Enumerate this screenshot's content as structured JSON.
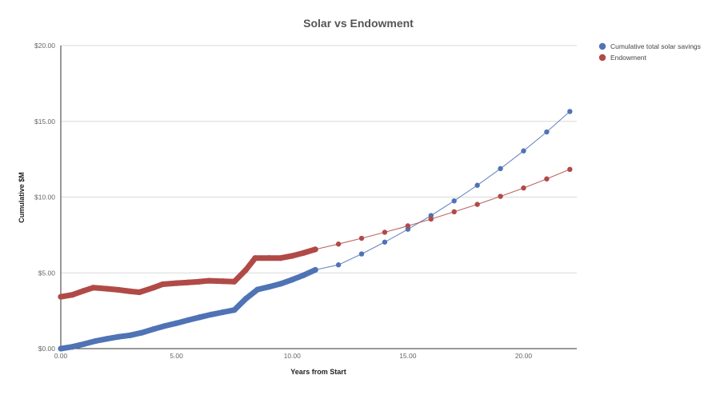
{
  "chart_data": {
    "type": "line",
    "title": "Solar vs Endowment",
    "xlabel": "Years from Start",
    "ylabel": "Cumulative $M",
    "xlim": [
      0,
      22.3
    ],
    "ylim": [
      0,
      20
    ],
    "x_ticks": [
      {
        "value": 0,
        "label": "0.00"
      },
      {
        "value": 5,
        "label": "5.00"
      },
      {
        "value": 10,
        "label": "10.00"
      },
      {
        "value": 15,
        "label": "15.00"
      },
      {
        "value": 20,
        "label": "20.00"
      }
    ],
    "y_ticks": [
      {
        "value": 0,
        "label": "$0.00"
      },
      {
        "value": 5,
        "label": "$5.00"
      },
      {
        "value": 10,
        "label": "$10.00"
      },
      {
        "value": 15,
        "label": "$15.00"
      },
      {
        "value": 20,
        "label": "$20.00"
      }
    ],
    "grid": true,
    "legend_position": "top-right",
    "series": [
      {
        "name": "Cumulative total solar savings",
        "color": "#4F73B5",
        "dense_points": [
          [
            0,
            0
          ],
          [
            0.5,
            0.12
          ],
          [
            1,
            0.3
          ],
          [
            1.5,
            0.5
          ],
          [
            2,
            0.65
          ],
          [
            2.5,
            0.78
          ],
          [
            3,
            0.88
          ],
          [
            3.5,
            1.05
          ],
          [
            4,
            1.28
          ],
          [
            4.5,
            1.5
          ],
          [
            5,
            1.68
          ],
          [
            5.5,
            1.88
          ],
          [
            6,
            2.07
          ],
          [
            6.5,
            2.25
          ],
          [
            7,
            2.4
          ],
          [
            7.5,
            2.55
          ],
          [
            8,
            3.3
          ],
          [
            8.5,
            3.9
          ],
          [
            9,
            4.08
          ],
          [
            9.5,
            4.28
          ],
          [
            10,
            4.55
          ],
          [
            10.5,
            4.85
          ],
          [
            11,
            5.2
          ]
        ],
        "sparse_points": [
          [
            11,
            5.2
          ],
          [
            12,
            5.53
          ],
          [
            13,
            6.25
          ],
          [
            14,
            7.03
          ],
          [
            15,
            7.88
          ],
          [
            16,
            8.78
          ],
          [
            17,
            9.75
          ],
          [
            18,
            10.78
          ],
          [
            19,
            11.88
          ],
          [
            20,
            13.05
          ],
          [
            21,
            14.3
          ],
          [
            22,
            15.65
          ]
        ]
      },
      {
        "name": "Endowment",
        "color": "#B04A47",
        "dense_points": [
          [
            0,
            3.42
          ],
          [
            0.5,
            3.55
          ],
          [
            1,
            3.82
          ],
          [
            1.4,
            4.02
          ],
          [
            2,
            3.95
          ],
          [
            2.5,
            3.88
          ],
          [
            3,
            3.78
          ],
          [
            3.4,
            3.72
          ],
          [
            4,
            4.02
          ],
          [
            4.4,
            4.25
          ],
          [
            5,
            4.32
          ],
          [
            5.5,
            4.37
          ],
          [
            6,
            4.42
          ],
          [
            6.4,
            4.48
          ],
          [
            7,
            4.45
          ],
          [
            7.5,
            4.42
          ],
          [
            8,
            5.2
          ],
          [
            8.4,
            5.98
          ],
          [
            9,
            5.98
          ],
          [
            9.5,
            5.98
          ],
          [
            10,
            6.12
          ],
          [
            10.5,
            6.32
          ],
          [
            11,
            6.55
          ]
        ],
        "sparse_points": [
          [
            11,
            6.55
          ],
          [
            12,
            6.9
          ],
          [
            13,
            7.28
          ],
          [
            14,
            7.68
          ],
          [
            15,
            8.1
          ],
          [
            16,
            8.55
          ],
          [
            17,
            9.03
          ],
          [
            18,
            9.52
          ],
          [
            19,
            10.05
          ],
          [
            20,
            10.6
          ],
          [
            21,
            11.2
          ],
          [
            22,
            11.83
          ]
        ]
      }
    ]
  }
}
